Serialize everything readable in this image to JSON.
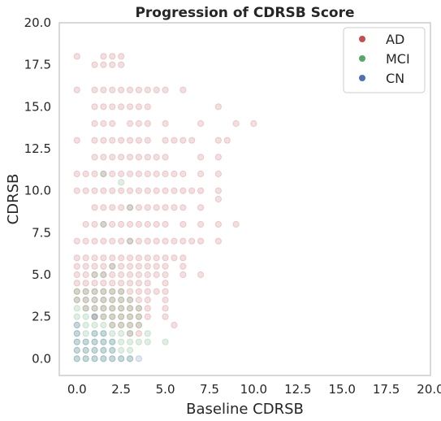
{
  "chart_data": {
    "type": "scatter",
    "title": "Progression of CDRSB Score",
    "xlabel": "Baseline CDRSB",
    "ylabel": "CDRSB",
    "xlim": [
      -1,
      20
    ],
    "ylim": [
      -1,
      20
    ],
    "xticks": [
      "0.0",
      "2.5",
      "5.0",
      "7.5",
      "10.0",
      "12.5",
      "15.0",
      "17.5",
      "20.0"
    ],
    "yticks": [
      "0.0",
      "2.5",
      "5.0",
      "7.5",
      "10.0",
      "12.5",
      "15.0",
      "17.5",
      "20.0"
    ],
    "grid": false,
    "legend_position": "top-right",
    "series": [
      {
        "name": "AD",
        "color": "#c44e52",
        "points": [
          [
            0,
            18
          ],
          [
            1.5,
            18
          ],
          [
            2,
            18
          ],
          [
            2.5,
            18
          ],
          [
            1,
            17.5
          ],
          [
            1.5,
            17.5
          ],
          [
            2,
            17.5
          ],
          [
            2.5,
            17.5
          ],
          [
            0,
            16
          ],
          [
            1,
            16
          ],
          [
            1.5,
            16
          ],
          [
            2,
            16
          ],
          [
            2.5,
            16
          ],
          [
            3,
            16
          ],
          [
            3.5,
            16
          ],
          [
            4,
            16
          ],
          [
            4.5,
            16
          ],
          [
            5,
            16
          ],
          [
            6,
            16
          ],
          [
            1,
            15
          ],
          [
            1.5,
            15
          ],
          [
            2,
            15
          ],
          [
            2.5,
            15
          ],
          [
            3,
            15
          ],
          [
            3.5,
            15
          ],
          [
            4,
            15
          ],
          [
            8,
            15
          ],
          [
            1,
            14
          ],
          [
            1.5,
            14
          ],
          [
            2,
            14
          ],
          [
            3,
            14
          ],
          [
            3.5,
            14
          ],
          [
            4,
            14
          ],
          [
            5,
            14
          ],
          [
            7,
            14
          ],
          [
            9,
            14
          ],
          [
            10,
            14
          ],
          [
            0,
            13
          ],
          [
            1,
            13
          ],
          [
            1.5,
            13
          ],
          [
            2,
            13
          ],
          [
            2.5,
            13
          ],
          [
            3,
            13
          ],
          [
            3.5,
            13
          ],
          [
            4,
            13
          ],
          [
            5,
            13
          ],
          [
            5.5,
            13
          ],
          [
            6,
            13
          ],
          [
            6.5,
            13
          ],
          [
            8,
            13
          ],
          [
            8.5,
            13
          ],
          [
            1,
            12
          ],
          [
            1.5,
            12
          ],
          [
            2,
            12
          ],
          [
            2.5,
            12
          ],
          [
            3,
            12
          ],
          [
            3.5,
            12
          ],
          [
            4,
            12
          ],
          [
            4.5,
            12
          ],
          [
            5,
            12
          ],
          [
            7,
            12
          ],
          [
            8,
            12
          ],
          [
            0,
            11
          ],
          [
            0.5,
            11
          ],
          [
            1,
            11
          ],
          [
            1.5,
            11
          ],
          [
            2,
            11
          ],
          [
            2.5,
            11
          ],
          [
            3,
            11
          ],
          [
            3.5,
            11
          ],
          [
            4,
            11
          ],
          [
            4.5,
            11
          ],
          [
            5,
            11
          ],
          [
            5.5,
            11
          ],
          [
            6,
            11
          ],
          [
            7,
            11
          ],
          [
            8,
            11
          ],
          [
            0,
            10
          ],
          [
            0.5,
            10
          ],
          [
            1,
            10
          ],
          [
            1.5,
            10
          ],
          [
            2,
            10
          ],
          [
            2.5,
            10
          ],
          [
            3,
            10
          ],
          [
            3.5,
            10
          ],
          [
            4,
            10
          ],
          [
            4.5,
            10
          ],
          [
            5,
            10
          ],
          [
            5.5,
            10
          ],
          [
            6,
            10
          ],
          [
            6.5,
            10
          ],
          [
            7,
            10
          ],
          [
            8,
            10
          ],
          [
            8,
            9.5
          ],
          [
            1,
            9
          ],
          [
            1.5,
            9
          ],
          [
            2,
            9
          ],
          [
            2.5,
            9
          ],
          [
            3,
            9
          ],
          [
            3.5,
            9
          ],
          [
            4,
            9
          ],
          [
            4.5,
            9
          ],
          [
            5,
            9
          ],
          [
            5.5,
            9
          ],
          [
            6,
            9
          ],
          [
            7,
            9
          ],
          [
            0.5,
            8
          ],
          [
            1,
            8
          ],
          [
            1.5,
            8
          ],
          [
            2,
            8
          ],
          [
            2.5,
            8
          ],
          [
            3,
            8
          ],
          [
            3.5,
            8
          ],
          [
            4,
            8
          ],
          [
            4.5,
            8
          ],
          [
            5,
            8
          ],
          [
            6,
            8
          ],
          [
            7,
            8
          ],
          [
            8,
            8
          ],
          [
            9,
            8
          ],
          [
            0,
            7
          ],
          [
            0.5,
            7
          ],
          [
            1,
            7
          ],
          [
            1.5,
            7
          ],
          [
            2,
            7
          ],
          [
            2.5,
            7
          ],
          [
            3,
            7
          ],
          [
            3.5,
            7
          ],
          [
            4,
            7
          ],
          [
            4.5,
            7
          ],
          [
            5,
            7
          ],
          [
            5.5,
            7
          ],
          [
            6,
            7
          ],
          [
            6.5,
            7
          ],
          [
            7,
            7
          ],
          [
            8,
            7
          ],
          [
            0,
            6
          ],
          [
            0.5,
            6
          ],
          [
            1,
            6
          ],
          [
            1.5,
            6
          ],
          [
            2,
            6
          ],
          [
            2.5,
            6
          ],
          [
            3,
            6
          ],
          [
            3.5,
            6
          ],
          [
            4,
            6
          ],
          [
            4.5,
            6
          ],
          [
            5,
            6
          ],
          [
            5.5,
            6
          ],
          [
            6,
            6
          ],
          [
            0,
            5.5
          ],
          [
            0.5,
            5.5
          ],
          [
            1,
            5.5
          ],
          [
            1.5,
            5.5
          ],
          [
            2,
            5.5
          ],
          [
            2.5,
            5.5
          ],
          [
            3,
            5.5
          ],
          [
            3.5,
            5.5
          ],
          [
            4,
            5.5
          ],
          [
            4.5,
            5.5
          ],
          [
            5,
            5.5
          ],
          [
            6,
            5.5
          ],
          [
            0,
            5
          ],
          [
            0.5,
            5
          ],
          [
            1,
            5
          ],
          [
            1.5,
            5
          ],
          [
            2,
            5
          ],
          [
            2.5,
            5
          ],
          [
            3,
            5
          ],
          [
            3.5,
            5
          ],
          [
            4,
            5
          ],
          [
            4.5,
            5
          ],
          [
            5,
            5
          ],
          [
            6,
            5
          ],
          [
            7,
            5
          ],
          [
            0,
            4.5
          ],
          [
            0.5,
            4.5
          ],
          [
            1,
            4.5
          ],
          [
            1.5,
            4.5
          ],
          [
            2,
            4.5
          ],
          [
            2.5,
            4.5
          ],
          [
            3,
            4.5
          ],
          [
            3.5,
            4.5
          ],
          [
            4,
            4.5
          ],
          [
            5,
            4.5
          ],
          [
            0,
            4
          ],
          [
            0.5,
            4
          ],
          [
            1,
            4
          ],
          [
            1.5,
            4
          ],
          [
            2,
            4
          ],
          [
            2.5,
            4
          ],
          [
            3,
            4
          ],
          [
            3.5,
            4
          ],
          [
            4,
            4
          ],
          [
            4.5,
            4
          ],
          [
            5,
            4
          ],
          [
            0,
            3.5
          ],
          [
            0.5,
            3.5
          ],
          [
            1,
            3.5
          ],
          [
            1.5,
            3.5
          ],
          [
            2,
            3.5
          ],
          [
            2.5,
            3.5
          ],
          [
            3,
            3.5
          ],
          [
            3.5,
            3.5
          ],
          [
            4,
            3.5
          ],
          [
            5,
            3.5
          ],
          [
            0.5,
            3
          ],
          [
            1,
            3
          ],
          [
            1.5,
            3
          ],
          [
            2,
            3
          ],
          [
            2.5,
            3
          ],
          [
            3,
            3
          ],
          [
            3.5,
            3
          ],
          [
            4,
            3
          ],
          [
            5,
            3
          ],
          [
            1,
            2.5
          ],
          [
            1.5,
            2.5
          ],
          [
            2,
            2.5
          ],
          [
            2.5,
            2.5
          ],
          [
            3,
            2.5
          ],
          [
            3.5,
            2.5
          ],
          [
            4,
            2.5
          ],
          [
            5,
            2.5
          ],
          [
            2,
            2
          ],
          [
            2.5,
            2
          ],
          [
            3,
            2
          ],
          [
            3.5,
            2
          ],
          [
            5.5,
            2
          ],
          [
            3,
            1.5
          ],
          [
            3.5,
            1.5
          ]
        ]
      },
      {
        "name": "MCI",
        "color": "#55a868",
        "points": [
          [
            0,
            4
          ],
          [
            0.5,
            4
          ],
          [
            1,
            4
          ],
          [
            1.5,
            4
          ],
          [
            2,
            4
          ],
          [
            2.5,
            4
          ],
          [
            0,
            3.5
          ],
          [
            0.5,
            3.5
          ],
          [
            1,
            3.5
          ],
          [
            1.5,
            3.5
          ],
          [
            2,
            3.5
          ],
          [
            2.5,
            3.5
          ],
          [
            3,
            3.5
          ],
          [
            0,
            3
          ],
          [
            0.5,
            3
          ],
          [
            1,
            3
          ],
          [
            1.5,
            3
          ],
          [
            2,
            3
          ],
          [
            2.5,
            3
          ],
          [
            3,
            3
          ],
          [
            3.5,
            3
          ],
          [
            0,
            2.5
          ],
          [
            0.5,
            2.5
          ],
          [
            1,
            2.5
          ],
          [
            1.5,
            2.5
          ],
          [
            2,
            2.5
          ],
          [
            2.5,
            2.5
          ],
          [
            3,
            2.5
          ],
          [
            3.5,
            2.5
          ],
          [
            0,
            2
          ],
          [
            0.5,
            2
          ],
          [
            1,
            2
          ],
          [
            1.5,
            2
          ],
          [
            2,
            2
          ],
          [
            2.5,
            2
          ],
          [
            3,
            2
          ],
          [
            3.5,
            2
          ],
          [
            0,
            1.5
          ],
          [
            0.5,
            1.5
          ],
          [
            1,
            1.5
          ],
          [
            1.5,
            1.5
          ],
          [
            2,
            1.5
          ],
          [
            2.5,
            1.5
          ],
          [
            3,
            1.5
          ],
          [
            4,
            1.5
          ],
          [
            0,
            1
          ],
          [
            0.5,
            1
          ],
          [
            1,
            1
          ],
          [
            1.5,
            1
          ],
          [
            2,
            1
          ],
          [
            2.5,
            1
          ],
          [
            3,
            1
          ],
          [
            3.5,
            1
          ],
          [
            4,
            1
          ],
          [
            5,
            1
          ],
          [
            0,
            0.5
          ],
          [
            0.5,
            0.5
          ],
          [
            1,
            0.5
          ],
          [
            1.5,
            0.5
          ],
          [
            2,
            0.5
          ],
          [
            2.5,
            0.5
          ],
          [
            3,
            0.5
          ],
          [
            0,
            0
          ],
          [
            0.5,
            0
          ],
          [
            1,
            0
          ],
          [
            1.5,
            0
          ],
          [
            2,
            0
          ],
          [
            2.5,
            0
          ],
          [
            3,
            0
          ],
          [
            1,
            5
          ],
          [
            1.5,
            5
          ],
          [
            2,
            5.5
          ],
          [
            3,
            9
          ],
          [
            2.5,
            10.5
          ],
          [
            1.5,
            11
          ],
          [
            1.5,
            8
          ],
          [
            3,
            7
          ]
        ]
      },
      {
        "name": "CN",
        "color": "#4c72b0",
        "points": [
          [
            0,
            1
          ],
          [
            0.5,
            1
          ],
          [
            1,
            1
          ],
          [
            1.5,
            1
          ],
          [
            2,
            1
          ],
          [
            0,
            0.5
          ],
          [
            0.5,
            0.5
          ],
          [
            1,
            0.5
          ],
          [
            1.5,
            0.5
          ],
          [
            2,
            0.5
          ],
          [
            0,
            0
          ],
          [
            0.5,
            0
          ],
          [
            1,
            0
          ],
          [
            1.5,
            0
          ],
          [
            2,
            0
          ],
          [
            2.5,
            0
          ],
          [
            3,
            0
          ],
          [
            3.5,
            0
          ],
          [
            0,
            1.5
          ],
          [
            1,
            1.5
          ],
          [
            1.5,
            1.5
          ],
          [
            0,
            2
          ],
          [
            1,
            2.5
          ]
        ]
      }
    ]
  }
}
